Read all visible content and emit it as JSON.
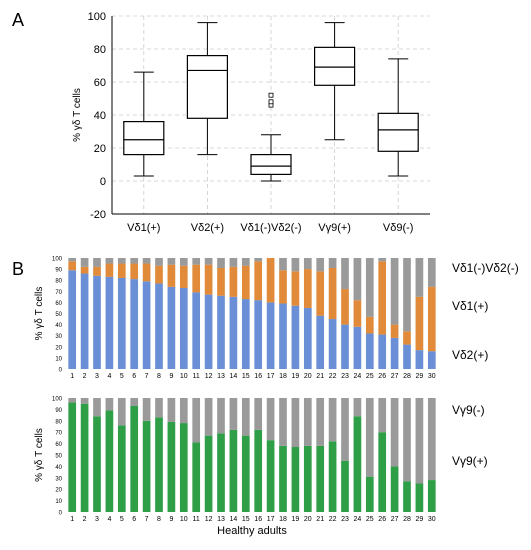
{
  "panel_a_label": "A",
  "panel_b_label": "B",
  "chart_data": [
    {
      "type": "box",
      "panel": "A",
      "ylabel": "% γδ T cells",
      "ylim": [
        -20,
        100
      ],
      "yticks": [
        -20,
        0,
        20,
        40,
        60,
        80,
        100
      ],
      "grid": true,
      "categories": [
        "Vδ1(+)",
        "Vδ2(+)",
        "Vδ1(-)Vδ2(-)",
        "Vγ9(+)",
        "Vδ9(-)"
      ],
      "boxes": [
        {
          "min": 3,
          "q1": 16,
          "median": 25,
          "q3": 36,
          "max": 66,
          "outliers": []
        },
        {
          "min": 16,
          "q1": 38,
          "median": 67,
          "q3": 76,
          "max": 96,
          "outliers": []
        },
        {
          "min": 0,
          "q1": 4,
          "median": 9,
          "q3": 16,
          "max": 28,
          "outliers": [
            46,
            48,
            52
          ]
        },
        {
          "min": 25,
          "q1": 58,
          "median": 69,
          "q3": 81,
          "max": 96,
          "outliers": []
        },
        {
          "min": 3,
          "q1": 18,
          "median": 31,
          "q3": 41,
          "max": 74,
          "outliers": []
        }
      ]
    },
    {
      "type": "bar",
      "stacked": true,
      "panel": "B-top",
      "ylabel": "% γδ T cells",
      "ylim": [
        0,
        100
      ],
      "yticks": [
        0,
        10,
        20,
        30,
        40,
        50,
        60,
        70,
        80,
        90,
        100
      ],
      "categories": [
        "1",
        "2",
        "3",
        "4",
        "5",
        "6",
        "7",
        "8",
        "9",
        "10",
        "11",
        "12",
        "13",
        "14",
        "15",
        "16",
        "17",
        "18",
        "19",
        "20",
        "21",
        "22",
        "23",
        "24",
        "25",
        "26",
        "27",
        "28",
        "29",
        "30"
      ],
      "series": [
        {
          "name": "Vδ2(+)",
          "color": "#6a8fd6",
          "values": [
            89,
            86,
            84,
            83,
            82,
            81,
            79,
            77,
            74,
            73,
            69,
            67,
            66,
            65,
            63,
            62,
            60,
            59,
            57,
            55,
            48,
            45,
            40,
            38,
            32,
            31,
            28,
            22,
            17,
            16
          ]
        },
        {
          "name": "Vδ1(+)",
          "color": "#e08a3a",
          "values": [
            8,
            6,
            8,
            12,
            13,
            14,
            16,
            16,
            20,
            20,
            25,
            27,
            25,
            27,
            30,
            35,
            40,
            30,
            31,
            35,
            40,
            46,
            32,
            24,
            15,
            66,
            12,
            12,
            48,
            58
          ]
        },
        {
          "name": "Vδ1(-)Vδ2(-)",
          "color": "#9a9a9a",
          "values": [
            3,
            8,
            8,
            5,
            5,
            5,
            5,
            7,
            6,
            7,
            6,
            6,
            9,
            8,
            7,
            3,
            0,
            11,
            12,
            10,
            12,
            9,
            28,
            38,
            53,
            3,
            60,
            66,
            35,
            26
          ]
        }
      ],
      "legend": [
        "Vδ1(-)Vδ2(-)",
        "Vδ1(+)",
        "Vδ2(+)"
      ]
    },
    {
      "type": "bar",
      "stacked": true,
      "panel": "B-bottom",
      "ylabel": "% γδ T cells",
      "xlabel": "Healthy adults",
      "ylim": [
        0,
        100
      ],
      "yticks": [
        0,
        10,
        20,
        30,
        40,
        50,
        60,
        70,
        80,
        90,
        100
      ],
      "categories": [
        "1",
        "2",
        "3",
        "4",
        "5",
        "6",
        "7",
        "8",
        "9",
        "10",
        "11",
        "12",
        "13",
        "14",
        "15",
        "16",
        "17",
        "18",
        "19",
        "20",
        "21",
        "22",
        "23",
        "24",
        "25",
        "26",
        "27",
        "28",
        "29",
        "30"
      ],
      "series": [
        {
          "name": "Vγ9(+)",
          "color": "#2e9e47",
          "values": [
            96,
            95,
            84,
            89,
            76,
            93,
            80,
            83,
            79,
            78,
            61,
            67,
            69,
            72,
            67,
            72,
            63,
            58,
            57,
            58,
            58,
            62,
            45,
            84,
            31,
            70,
            40,
            27,
            25,
            28
          ]
        },
        {
          "name": "Vγ9(-)",
          "color": "#9a9a9a",
          "values": [
            4,
            5,
            16,
            11,
            24,
            7,
            20,
            17,
            21,
            22,
            39,
            33,
            31,
            28,
            33,
            28,
            37,
            42,
            43,
            42,
            42,
            38,
            55,
            16,
            69,
            30,
            60,
            73,
            75,
            72
          ]
        }
      ],
      "legend": [
        "Vγ9(-)",
        "Vγ9(+)"
      ]
    }
  ]
}
